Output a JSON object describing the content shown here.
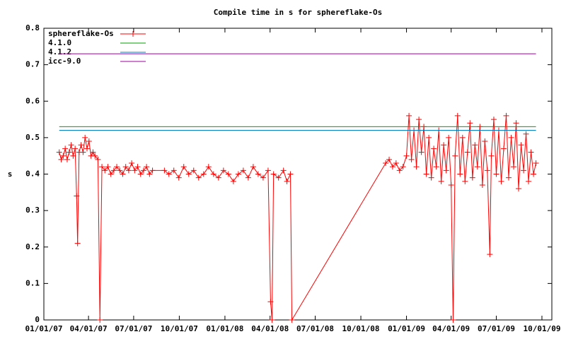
{
  "chart_data": {
    "type": "line",
    "title": "Compile time in s for sphereflake-Os",
    "y_label": "s",
    "xlim": [
      "2007-01-01",
      "2009-10-21"
    ],
    "xticks": [
      {
        "value": "2007-01-01",
        "label": "01/01/07"
      },
      {
        "value": "2007-04-01",
        "label": "04/01/07"
      },
      {
        "value": "2007-07-01",
        "label": "07/01/07"
      },
      {
        "value": "2007-10-01",
        "label": "10/01/07"
      },
      {
        "value": "2008-01-01",
        "label": "01/01/08"
      },
      {
        "value": "2008-04-01",
        "label": "04/01/08"
      },
      {
        "value": "2008-07-01",
        "label": "07/01/08"
      },
      {
        "value": "2008-10-01",
        "label": "10/01/08"
      },
      {
        "value": "2009-01-01",
        "label": "01/01/09"
      },
      {
        "value": "2009-04-01",
        "label": "04/01/09"
      },
      {
        "value": "2009-07-01",
        "label": "07/01/09"
      },
      {
        "value": "2009-10-01",
        "label": "10/01/09"
      }
    ],
    "ylim": [
      0,
      0.8
    ],
    "yticks": [
      0,
      0.1,
      0.2,
      0.3,
      0.4,
      0.5,
      0.6,
      0.7,
      0.8
    ],
    "legend": "top-left",
    "series": [
      {
        "name": "sphereflake-Os",
        "color": "#ff0000",
        "markers": true,
        "x": [
          "2007-02-01",
          "2007-02-05",
          "2007-02-09",
          "2007-02-13",
          "2007-02-17",
          "2007-02-21",
          "2007-02-25",
          "2007-03-01",
          "2007-03-05",
          "2007-03-08",
          "2007-03-10",
          "2007-03-13",
          "2007-03-17",
          "2007-03-21",
          "2007-03-25",
          "2007-03-29",
          "2007-04-02",
          "2007-04-06",
          "2007-04-10",
          "2007-04-14",
          "2007-04-20",
          "2007-04-24",
          "2007-04-28",
          "2007-05-04",
          "2007-05-10",
          "2007-05-16",
          "2007-05-22",
          "2007-05-28",
          "2007-06-03",
          "2007-06-09",
          "2007-06-15",
          "2007-06-21",
          "2007-06-27",
          "2007-07-03",
          "2007-07-09",
          "2007-07-15",
          "2007-07-21",
          "2007-07-27",
          "2007-08-02",
          "2007-08-08",
          "2007-09-01",
          "2007-09-10",
          "2007-09-20",
          "2007-09-30",
          "2007-10-10",
          "2007-10-20",
          "2007-10-30",
          "2007-11-09",
          "2007-11-19",
          "2007-11-29",
          "2007-12-09",
          "2007-12-19",
          "2007-12-29",
          "2008-01-08",
          "2008-01-18",
          "2008-01-28",
          "2008-02-07",
          "2008-02-17",
          "2008-02-27",
          "2008-03-08",
          "2008-03-18",
          "2008-03-28",
          "2008-04-02",
          "2008-04-05",
          "2008-04-08",
          "2008-04-18",
          "2008-04-28",
          "2008-05-05",
          "2008-05-12",
          "2008-05-15",
          "2008-11-20",
          "2008-11-27",
          "2008-12-04",
          "2008-12-11",
          "2008-12-18",
          "2008-12-25",
          "2009-01-01",
          "2009-01-06",
          "2009-01-11",
          "2009-01-16",
          "2009-01-21",
          "2009-01-26",
          "2009-01-31",
          "2009-02-05",
          "2009-02-10",
          "2009-02-15",
          "2009-02-20",
          "2009-02-25",
          "2009-03-02",
          "2009-03-07",
          "2009-03-12",
          "2009-03-17",
          "2009-03-22",
          "2009-03-27",
          "2009-04-01",
          "2009-04-05",
          "2009-04-09",
          "2009-04-14",
          "2009-04-19",
          "2009-04-24",
          "2009-04-29",
          "2009-05-04",
          "2009-05-09",
          "2009-05-14",
          "2009-05-19",
          "2009-05-24",
          "2009-05-29",
          "2009-06-03",
          "2009-06-08",
          "2009-06-13",
          "2009-06-18",
          "2009-06-21",
          "2009-06-26",
          "2009-07-01",
          "2009-07-06",
          "2009-07-11",
          "2009-07-16",
          "2009-07-21",
          "2009-07-26",
          "2009-07-31",
          "2009-08-05",
          "2009-08-10",
          "2009-08-15",
          "2009-08-20",
          "2009-08-25",
          "2009-08-30",
          "2009-09-04",
          "2009-09-09",
          "2009-09-14",
          "2009-09-19"
        ],
        "values": [
          0.46,
          0.44,
          0.45,
          0.47,
          0.44,
          0.46,
          0.48,
          0.45,
          0.47,
          0.34,
          0.21,
          0.46,
          0.48,
          0.46,
          0.5,
          0.47,
          0.49,
          0.45,
          0.46,
          0.45,
          0.44,
          0,
          0.42,
          0.41,
          0.42,
          0.4,
          0.41,
          0.42,
          0.41,
          0.4,
          0.42,
          0.41,
          0.43,
          0.41,
          0.42,
          0.4,
          0.41,
          0.42,
          0.4,
          0.41,
          0.41,
          0.4,
          0.41,
          0.39,
          0.42,
          0.4,
          0.41,
          0.39,
          0.4,
          0.42,
          0.4,
          0.39,
          0.41,
          0.4,
          0.38,
          0.4,
          0.41,
          0.39,
          0.42,
          0.4,
          0.39,
          0.41,
          0.05,
          0,
          0.4,
          0.39,
          0.41,
          0.38,
          0.4,
          0,
          0.43,
          0.44,
          0.42,
          0.43,
          0.41,
          0.42,
          0.45,
          0.56,
          0.44,
          0.52,
          0.42,
          0.55,
          0.46,
          0.53,
          0.4,
          0.5,
          0.39,
          0.47,
          0.42,
          0.52,
          0.38,
          0.48,
          0.41,
          0.5,
          0.37,
          0,
          0.45,
          0.56,
          0.4,
          0.5,
          0.38,
          0.46,
          0.54,
          0.39,
          0.48,
          0.42,
          0.53,
          0.37,
          0.49,
          0.41,
          0.18,
          0.45,
          0.55,
          0.4,
          0.52,
          0.38,
          0.47,
          0.56,
          0.39,
          0.5,
          0.42,
          0.54,
          0.36,
          0.48,
          0.41,
          0.51,
          0.38,
          0.46,
          0.4,
          0.43
        ]
      },
      {
        "name": "4.1.0",
        "color": "#00a000",
        "x": [
          "2007-02-01",
          "2009-09-19"
        ],
        "values": [
          0.53,
          0.53
        ]
      },
      {
        "name": "4.1.2",
        "color": "#0080c0",
        "x": [
          "2007-02-01",
          "2009-09-19"
        ],
        "values": [
          0.52,
          0.52
        ]
      },
      {
        "name": "icc-9.0",
        "color": "#a000a0",
        "x": [
          "2007-02-01",
          "2009-09-19"
        ],
        "values": [
          0.73,
          0.73
        ]
      }
    ]
  }
}
